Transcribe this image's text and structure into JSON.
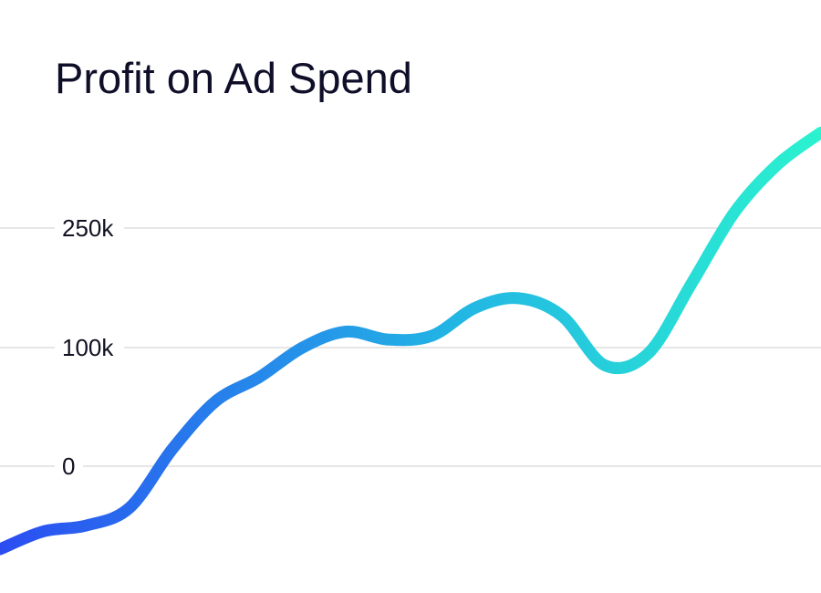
{
  "chart_data": {
    "type": "line",
    "title": "Profit on Ad Spend",
    "xlabel": "",
    "ylabel": "",
    "y_ticks": [
      {
        "value": 250000,
        "label": "250k"
      },
      {
        "value": 100000,
        "label": "100k"
      },
      {
        "value": 0,
        "label": "0"
      }
    ],
    "grid": true,
    "legend": "none",
    "colors": {
      "gradient_start": "#2b4df2",
      "gradient_mid": "#22b5e4",
      "gradient_end": "#2bf2cf",
      "grid": "#dedede",
      "text": "#0f0f2a"
    },
    "series": [
      {
        "values": [
          -70000,
          -55000,
          -50000,
          -35000,
          15000,
          55000,
          75000,
          100000,
          120000,
          110000,
          115000,
          150000,
          162000,
          140000,
          85000,
          95000,
          180000,
          270000,
          330000,
          370000
        ]
      }
    ]
  }
}
